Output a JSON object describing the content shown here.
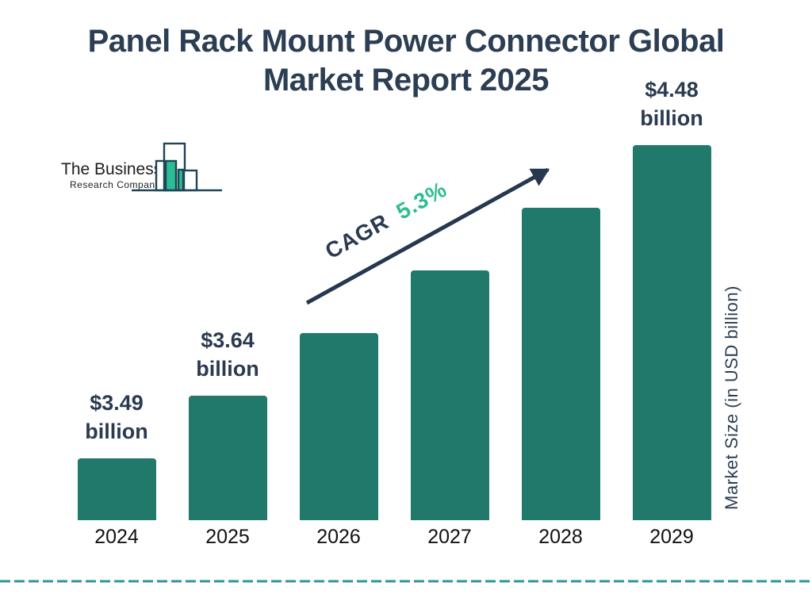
{
  "title": {
    "line1": "Panel Rack Mount Power Connector Global",
    "line2": "Market Report 2025"
  },
  "logo": {
    "name": "The Business",
    "subname": "Research Company"
  },
  "annotation": {
    "cagr_label": "CAGR",
    "cagr_value": "5.3%"
  },
  "y_axis_label": "Market Size (in USD billion)",
  "chart_data": {
    "type": "bar",
    "title": "Panel Rack Mount Power Connector Global Market Report 2025",
    "categories": [
      "2024",
      "2025",
      "2026",
      "2027",
      "2028",
      "2029"
    ],
    "values": [
      3.49,
      3.64,
      3.83,
      4.03,
      4.25,
      4.48
    ],
    "unit": "USD billion",
    "labeled_points": [
      {
        "category": "2024",
        "label": "$3.49 billion"
      },
      {
        "category": "2025",
        "label": "$3.64 billion"
      },
      {
        "category": "2029",
        "label": "$4.48 billion"
      }
    ],
    "bar_value_labels": [
      [
        "$3.49",
        "billion"
      ],
      [
        "$3.64",
        "billion"
      ],
      null,
      null,
      null,
      [
        "$4.48",
        "billion"
      ]
    ],
    "xlabel": "",
    "ylabel": "Market Size (in USD billion)",
    "cagr_percent": 5.3,
    "grid": false,
    "legend": "none",
    "bar_color": "#21796b"
  },
  "colors": {
    "navy": "#2b3a50",
    "bar_teal": "#21796b",
    "accent_green": "#2ebd92",
    "divider_teal": "#2a9699",
    "logo_bar_green": "#2bbd94",
    "logo_outline": "#1f4556",
    "arrow_navy": "#25384f"
  }
}
